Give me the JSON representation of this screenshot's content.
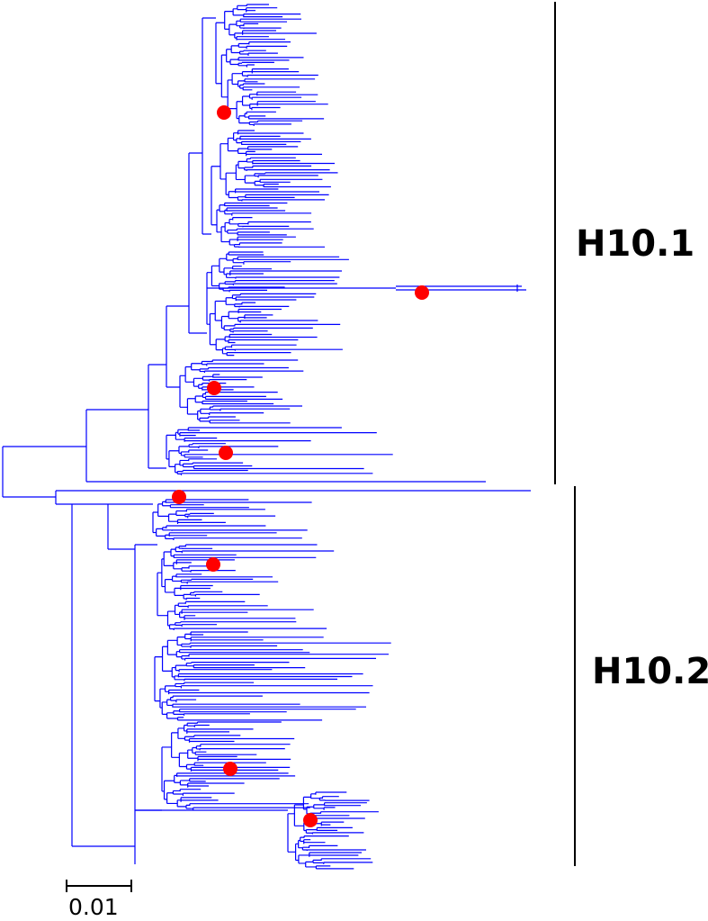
{
  "figure": {
    "branch_color": "#0000ff",
    "marker_color": "#ff0000",
    "bar_color": "#000000"
  },
  "clades": [
    {
      "label": "H10.1"
    },
    {
      "label": "H10.2"
    }
  ],
  "scale_bar": {
    "label": "0.01",
    "value": 0.01
  },
  "markers": [
    {
      "clade": "H10.1"
    },
    {
      "clade": "H10.1"
    },
    {
      "clade": "H10.1"
    },
    {
      "clade": "H10.1"
    },
    {
      "clade": "H10.2"
    },
    {
      "clade": "H10.2"
    },
    {
      "clade": "H10.2"
    },
    {
      "clade": "H10.2"
    }
  ]
}
